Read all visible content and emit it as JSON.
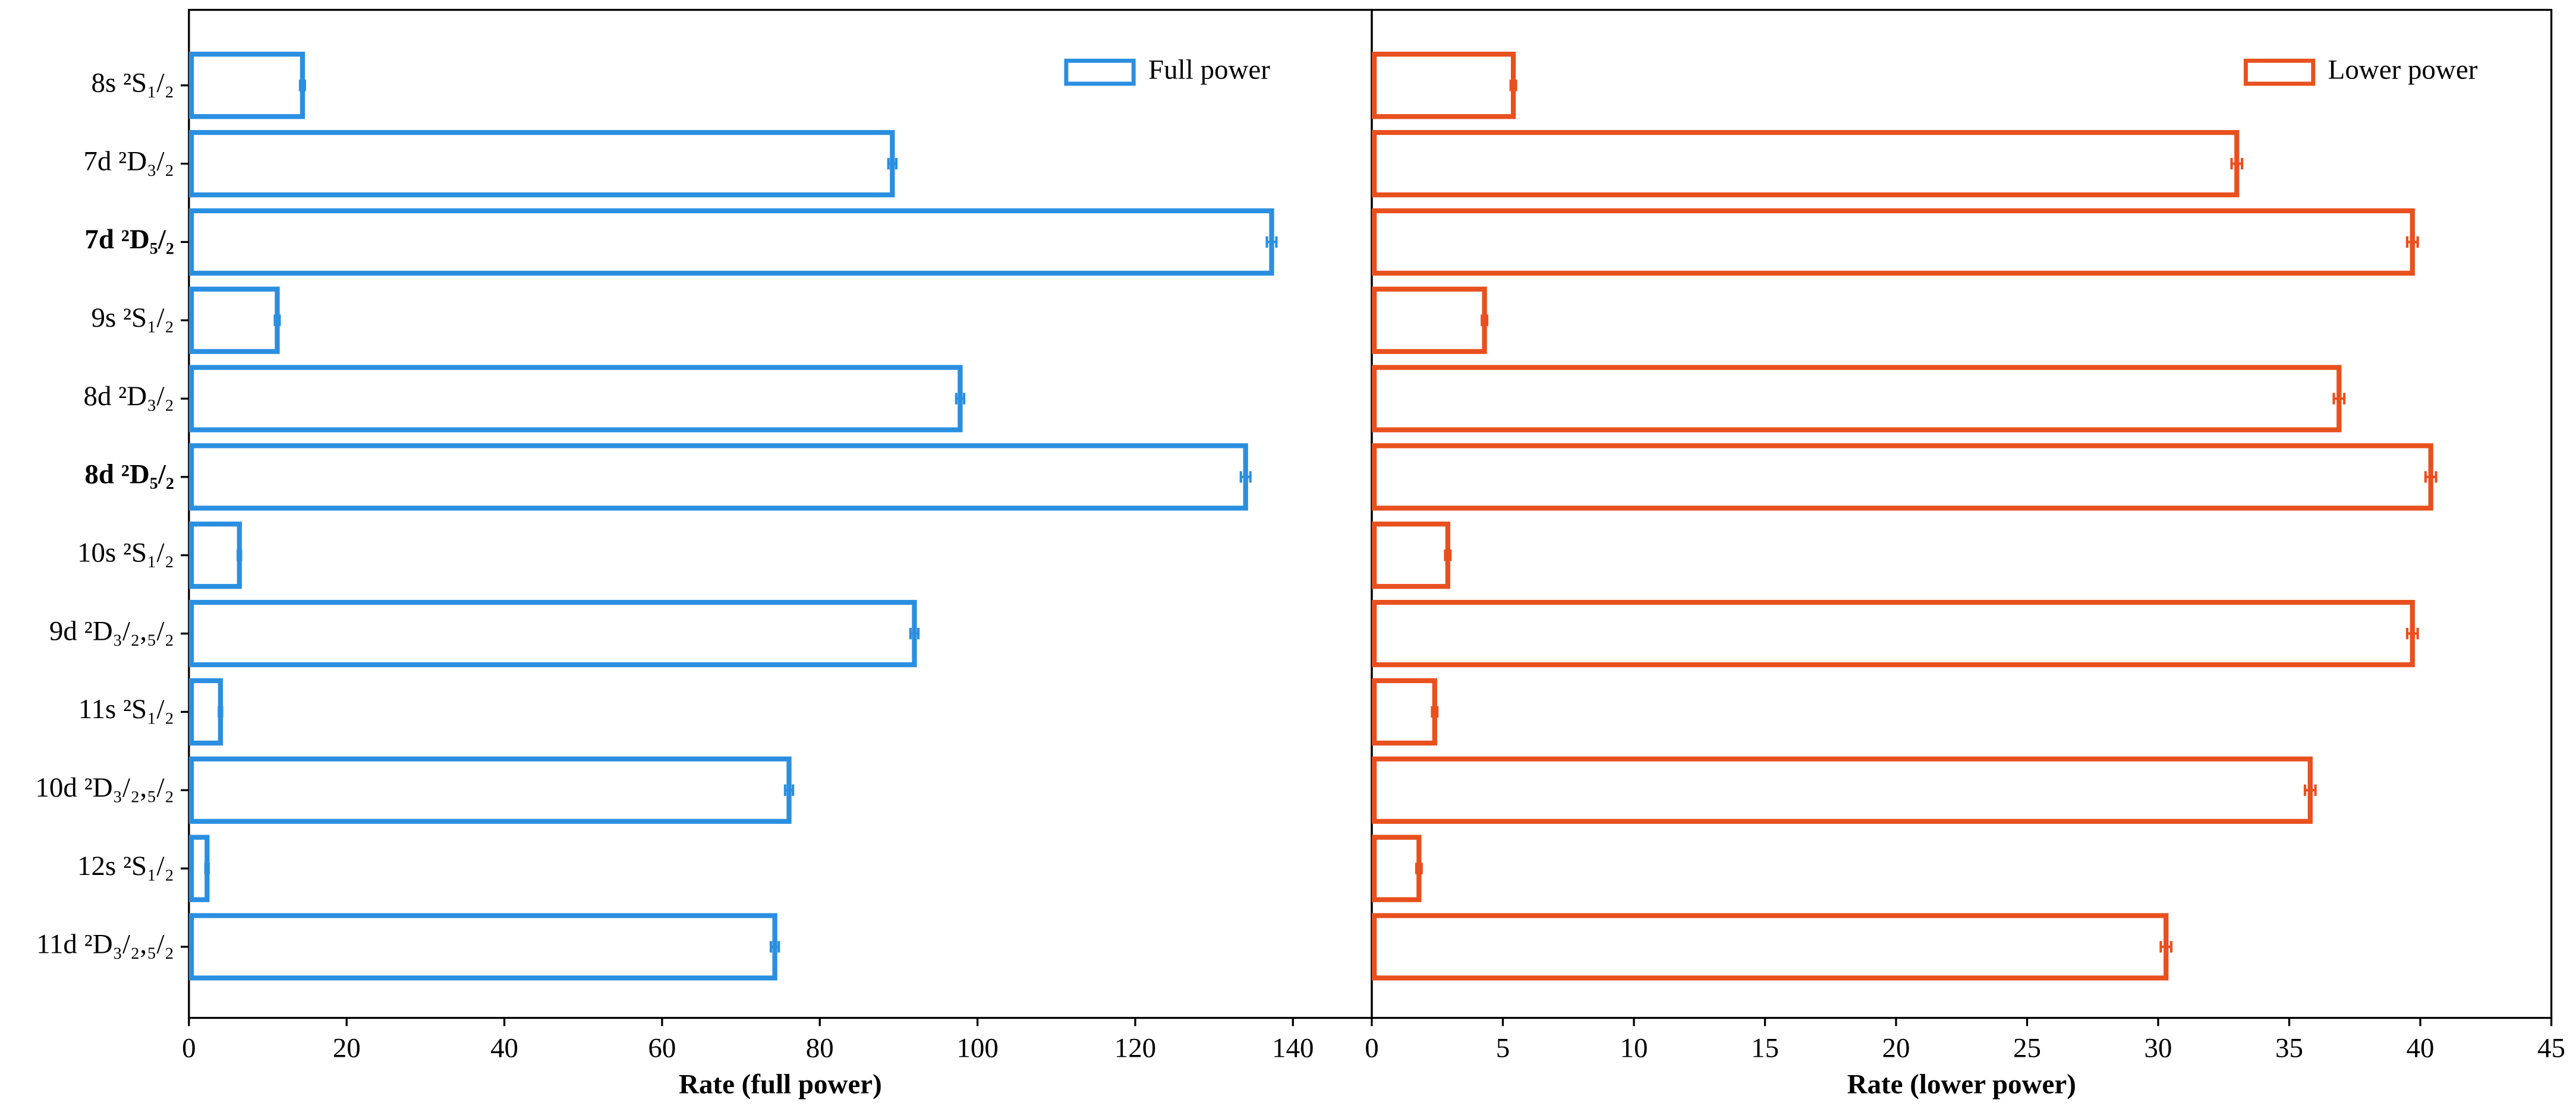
{
  "chart_data": [
    {
      "type": "bar",
      "orientation": "horizontal",
      "categories": [
        "8s ²S₁/₂",
        "7d ²D₃/₂",
        "7d ²D₅/₂",
        "9s ²S₁/₂",
        "8d ²D₃/₂",
        "8d ²D₅/₂",
        "10s ²S₁/₂",
        "9d ²D₃/₂,₅/₂",
        "11s ²S₁/₂",
        "10d ²D₃/₂,₅/₂",
        "12s ²S₁/₂",
        "11d ²D₃/₂,₅/₂"
      ],
      "category_colors": [
        "#000000",
        "#000000",
        "#2a8fe0",
        "#000000",
        "#000000",
        "#e8501e",
        "#000000",
        "#000000",
        "#000000",
        "#000000",
        "#000000",
        "#000000"
      ],
      "series": [
        {
          "name": "Full power",
          "color": "#2a8fe0",
          "values": [
            14.4,
            89.2,
            137.3,
            11.2,
            97.8,
            134,
            6.4,
            92,
            4,
            76.1,
            2.3,
            74.3
          ],
          "errors": [
            0.3,
            0.5,
            0.6,
            0.3,
            0.5,
            0.6,
            0.2,
            0.5,
            0.2,
            0.5,
            0.2,
            0.5
          ]
        }
      ],
      "xlabel": "Rate (full power)",
      "xlim": [
        0,
        150
      ],
      "xticks": [
        0,
        20,
        40,
        60,
        80,
        100,
        120,
        140
      ],
      "legend": "upper right"
    },
    {
      "type": "bar",
      "orientation": "horizontal",
      "series": [
        {
          "name": "Lower power",
          "color": "#e8501e",
          "values": [
            5.4,
            33.0,
            39.7,
            4.3,
            36.9,
            40.4,
            2.9,
            39.7,
            2.4,
            35.8,
            1.8,
            30.3
          ],
          "errors": [
            0.1,
            0.2,
            0.2,
            0.1,
            0.2,
            0.2,
            0.1,
            0.2,
            0.1,
            0.2,
            0.1,
            0.2
          ]
        }
      ],
      "xlabel": "Rate (lower power)",
      "xlim": [
        0,
        45
      ],
      "xticks": [
        0,
        5,
        10,
        15,
        20,
        25,
        30,
        35,
        40,
        45
      ],
      "legend": "upper right"
    }
  ]
}
